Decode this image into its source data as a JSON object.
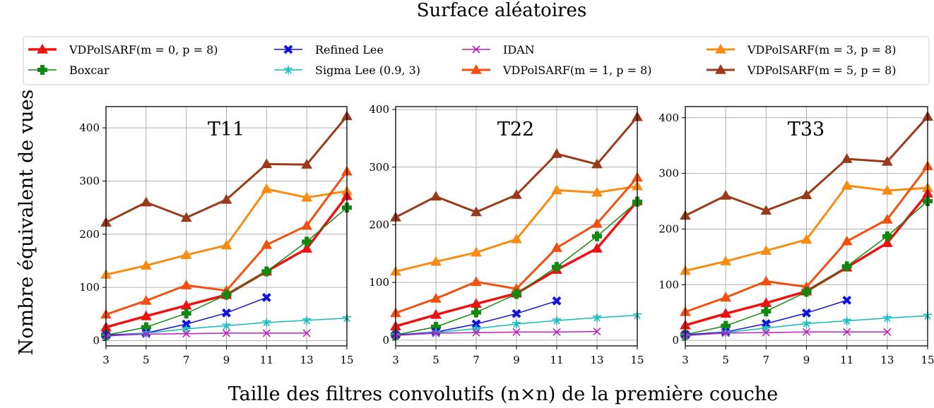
{
  "figure": {
    "title": "Surface aléatoires",
    "xlabel": "Taille des filtres convolutifs (n×n) de la première couche",
    "ylabel": "Nombre équivalent de vues"
  },
  "legend": {
    "items": [
      {
        "label": "VDPolSARF(m = 0, p = 8)",
        "color": "#ee1111",
        "marker": "triangle"
      },
      {
        "label": "Boxcar",
        "color": "#118811",
        "marker": "plus"
      },
      {
        "label": "Refined Lee",
        "color": "#1111dd",
        "marker": "x-bold"
      },
      {
        "label": "Sigma Lee (0.9, 3)",
        "color": "#11bbbb",
        "marker": "star"
      },
      {
        "label": "IDAN",
        "color": "#bb22bb",
        "marker": "x"
      },
      {
        "label": "VDPolSARF(m = 1, p = 8)",
        "color": "#f25010",
        "marker": "triangle"
      },
      {
        "label": "VDPolSARF(m = 3, p = 8)",
        "color": "#f88c10",
        "marker": "triangle"
      },
      {
        "label": "VDPolSARF(m = 5, p = 8)",
        "color": "#993b1a",
        "marker": "triangle"
      }
    ]
  },
  "chart_data": [
    {
      "type": "line",
      "title": "T11",
      "x": [
        3,
        5,
        7,
        9,
        11,
        13,
        15
      ],
      "xticks": [
        3,
        5,
        7,
        9,
        11,
        13,
        15
      ],
      "yticks": [
        0,
        100,
        200,
        300,
        400
      ],
      "xlim": [
        3,
        15
      ],
      "ylim": [
        -10,
        440
      ],
      "grid": true,
      "series": [
        {
          "name": "VDPolSARF(m = 5, p = 8)",
          "color": "#993b1a",
          "marker": "triangle",
          "lw": 3,
          "values": [
            222,
            260,
            231,
            265,
            332,
            331,
            422
          ]
        },
        {
          "name": "VDPolSARF(m = 3, p = 8)",
          "color": "#f88c10",
          "marker": "triangle",
          "lw": 3,
          "values": [
            124,
            141,
            161,
            179,
            285,
            269,
            281
          ]
        },
        {
          "name": "VDPolSARF(m = 1, p = 8)",
          "color": "#f25010",
          "marker": "triangle",
          "lw": 3,
          "values": [
            49,
            75,
            104,
            94,
            180,
            216,
            318
          ]
        },
        {
          "name": "VDPolSARF(m = 0, p = 8)",
          "color": "#ee1111",
          "marker": "triangle",
          "lw": 3.5,
          "values": [
            25,
            46,
            66,
            86,
            130,
            173,
            272
          ]
        },
        {
          "name": "Boxcar",
          "color": "#118811",
          "marker": "plus",
          "lw": 1.5,
          "values": [
            10,
            25,
            51,
            86,
            130,
            186,
            250
          ]
        },
        {
          "name": "Refined Lee",
          "color": "#1111dd",
          "marker": "x-bold",
          "lw": 1.5,
          "values": [
            10,
            14,
            31,
            52,
            81,
            null,
            null
          ]
        },
        {
          "name": "Sigma Lee (0.9, 3)",
          "color": "#11bbbb",
          "marker": "star",
          "lw": 1.5,
          "values": [
            8,
            14,
            22,
            28,
            34,
            38,
            42
          ]
        },
        {
          "name": "IDAN",
          "color": "#bb22bb",
          "marker": "x",
          "lw": 1.5,
          "values": [
            9,
            12,
            13,
            14,
            14,
            14,
            null
          ]
        }
      ]
    },
    {
      "type": "line",
      "title": "T22",
      "x": [
        3,
        5,
        7,
        9,
        11,
        13,
        15
      ],
      "xticks": [
        3,
        5,
        7,
        9,
        11,
        13,
        15
      ],
      "yticks": [
        0,
        100,
        200,
        300,
        400
      ],
      "xlim": [
        3,
        15
      ],
      "ylim": [
        -10,
        405
      ],
      "grid": true,
      "series": [
        {
          "name": "VDPolSARF(m = 5, p = 8)",
          "color": "#993b1a",
          "marker": "triangle",
          "lw": 3,
          "values": [
            213,
            249,
            222,
            252,
            323,
            305,
            387
          ]
        },
        {
          "name": "VDPolSARF(m = 3, p = 8)",
          "color": "#f88c10",
          "marker": "triangle",
          "lw": 3,
          "values": [
            119,
            136,
            152,
            175,
            260,
            256,
            267
          ]
        },
        {
          "name": "VDPolSARF(m = 1, p = 8)",
          "color": "#f25010",
          "marker": "triangle",
          "lw": 3,
          "values": [
            47,
            72,
            101,
            89,
            160,
            202,
            282
          ]
        },
        {
          "name": "VDPolSARF(m = 0, p = 8)",
          "color": "#ee1111",
          "marker": "triangle",
          "lw": 3.5,
          "values": [
            24,
            44,
            63,
            81,
            122,
            159,
            241
          ]
        },
        {
          "name": "Boxcar",
          "color": "#118811",
          "marker": "plus",
          "lw": 1.5,
          "values": [
            9,
            23,
            48,
            80,
            127,
            180,
            240
          ]
        },
        {
          "name": "Refined Lee",
          "color": "#1111dd",
          "marker": "x-bold",
          "lw": 1.5,
          "values": [
            9,
            14,
            28,
            46,
            68,
            null,
            null
          ]
        },
        {
          "name": "Sigma Lee (0.9, 3)",
          "color": "#11bbbb",
          "marker": "star",
          "lw": 1.5,
          "values": [
            8,
            13,
            20,
            28,
            34,
            39,
            43
          ]
        },
        {
          "name": "IDAN",
          "color": "#bb22bb",
          "marker": "x",
          "lw": 1.5,
          "values": [
            8,
            12,
            13,
            14,
            14,
            15,
            null
          ]
        }
      ]
    },
    {
      "type": "line",
      "title": "T33",
      "x": [
        3,
        5,
        7,
        9,
        11,
        13,
        15
      ],
      "xticks": [
        3,
        5,
        7,
        9,
        11,
        13,
        15
      ],
      "yticks": [
        0,
        100,
        200,
        300,
        400
      ],
      "xlim": [
        3,
        15
      ],
      "ylim": [
        -10,
        420
      ],
      "grid": true,
      "series": [
        {
          "name": "VDPolSARF(m = 5, p = 8)",
          "color": "#993b1a",
          "marker": "triangle",
          "lw": 3,
          "values": [
            224,
            260,
            233,
            261,
            326,
            321,
            402
          ]
        },
        {
          "name": "VDPolSARF(m = 3, p = 8)",
          "color": "#f88c10",
          "marker": "triangle",
          "lw": 3,
          "values": [
            125,
            142,
            161,
            181,
            278,
            269,
            274
          ]
        },
        {
          "name": "VDPolSARF(m = 1, p = 8)",
          "color": "#f25010",
          "marker": "triangle",
          "lw": 3,
          "values": [
            51,
            77,
            106,
            96,
            178,
            217,
            313
          ]
        },
        {
          "name": "VDPolSARF(m = 0, p = 8)",
          "color": "#ee1111",
          "marker": "triangle",
          "lw": 3.5,
          "values": [
            27,
            48,
            67,
            88,
            131,
            175,
            264
          ]
        },
        {
          "name": "Boxcar",
          "color": "#118811",
          "marker": "plus",
          "lw": 1.5,
          "values": [
            10,
            26,
            52,
            87,
            133,
            187,
            250
          ]
        },
        {
          "name": "Refined Lee",
          "color": "#1111dd",
          "marker": "x-bold",
          "lw": 1.5,
          "values": [
            10,
            15,
            30,
            49,
            72,
            null,
            null
          ]
        },
        {
          "name": "Sigma Lee (0.9, 3)",
          "color": "#11bbbb",
          "marker": "star",
          "lw": 1.5,
          "values": [
            8,
            14,
            22,
            30,
            35,
            40,
            44
          ]
        },
        {
          "name": "IDAN",
          "color": "#bb22bb",
          "marker": "x",
          "lw": 1.5,
          "values": [
            9,
            13,
            14,
            15,
            15,
            15,
            null
          ]
        }
      ]
    }
  ]
}
